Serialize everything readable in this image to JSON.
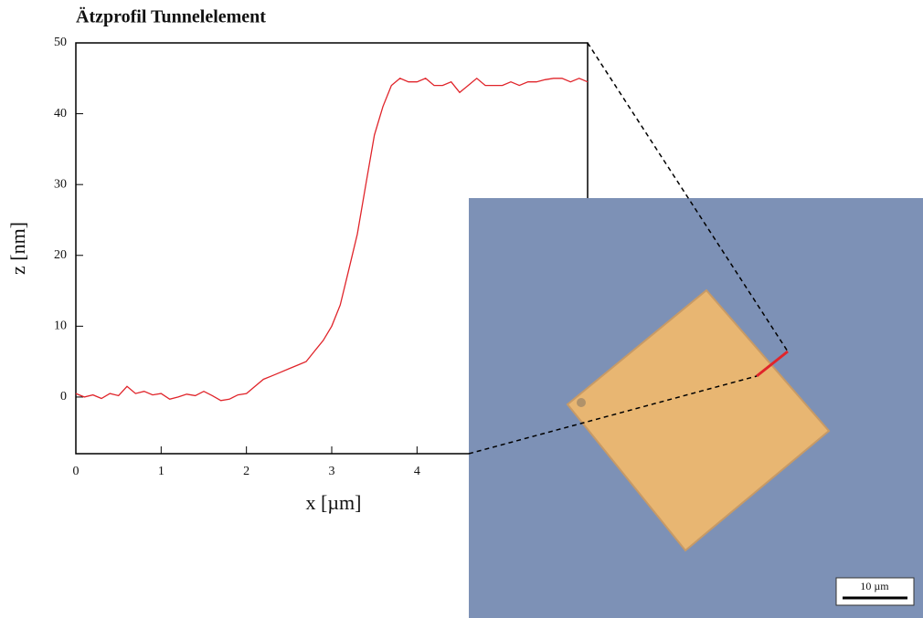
{
  "chart_data": {
    "type": "line",
    "title": "Ätzprofil Tunnelelement",
    "x_label": "x [µm]",
    "y_label": "z [nm]",
    "x": [
      0,
      0.1,
      0.2,
      0.3,
      0.4,
      0.5,
      0.6,
      0.7,
      0.8,
      0.9,
      1.0,
      1.1,
      1.2,
      1.3,
      1.4,
      1.5,
      1.6,
      1.7,
      1.8,
      1.9,
      2.0,
      2.1,
      2.2,
      2.3,
      2.4,
      2.5,
      2.6,
      2.7,
      2.8,
      2.9,
      3.0,
      3.1,
      3.2,
      3.3,
      3.4,
      3.5,
      3.6,
      3.7,
      3.8,
      3.9,
      4.0,
      4.1,
      4.2,
      4.3,
      4.4,
      4.5,
      4.6,
      4.7,
      4.8,
      4.9,
      5.0,
      5.1,
      5.2,
      5.3,
      5.4,
      5.5,
      5.6,
      5.7,
      5.8,
      5.9,
      6.0
    ],
    "series": [
      {
        "color": "#e0242a",
        "values": [
          0.5,
          0,
          0.3,
          -0.2,
          0.5,
          0.2,
          1.5,
          0.5,
          0.8,
          0.3,
          0.5,
          -0.3,
          0,
          0.4,
          0.2,
          0.8,
          0.2,
          -0.5,
          -0.3,
          0.3,
          0.5,
          1.5,
          2.5,
          3,
          3.5,
          4,
          4.5,
          5,
          6.5,
          8,
          10,
          13,
          18,
          23,
          30,
          37,
          41,
          44,
          45,
          44.5,
          44.5,
          45,
          44,
          44,
          44.5,
          43,
          44,
          45,
          44,
          44,
          44,
          44.5,
          44,
          44.5,
          44.5,
          44.8,
          45,
          45,
          44.5,
          45,
          44.5
        ]
      }
    ],
    "xlim": [
      0,
      6
    ],
    "xticks": [
      0,
      1,
      2,
      3,
      4
    ],
    "ylim": [
      -8,
      50
    ],
    "yticks": [
      0,
      10,
      20,
      30,
      40,
      50
    ],
    "annotations": [
      "10 µm"
    ]
  }
}
